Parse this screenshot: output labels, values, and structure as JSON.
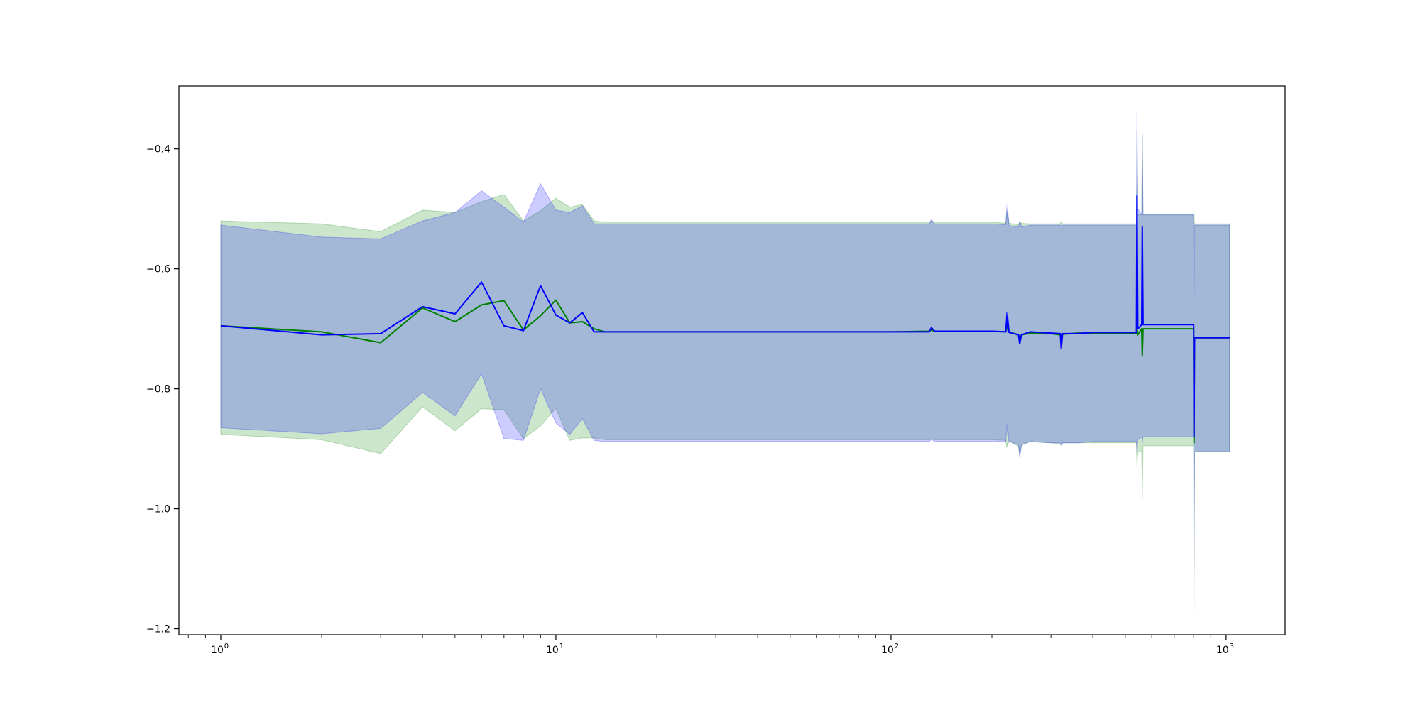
{
  "chart_data": {
    "type": "line",
    "title": "",
    "xlabel": "",
    "ylabel": "",
    "xscale": "log",
    "xlim": [
      0.75,
      1500
    ],
    "ylim": [
      -1.21,
      -0.295
    ],
    "grid": false,
    "legend": "none",
    "x_ticks": [
      {
        "value": 1,
        "base": "10",
        "exp": "0"
      },
      {
        "value": 10,
        "base": "10",
        "exp": "1"
      },
      {
        "value": 100,
        "base": "10",
        "exp": "2"
      },
      {
        "value": 1000,
        "base": "10",
        "exp": "3"
      }
    ],
    "y_ticks": [
      {
        "value": -0.4,
        "label": "−0.4"
      },
      {
        "value": -0.6,
        "label": "−0.6"
      },
      {
        "value": -0.8,
        "label": "−0.8"
      },
      {
        "value": -1.0,
        "label": "−1.0"
      },
      {
        "value": -1.2,
        "label": "−1.2"
      }
    ],
    "series": [
      {
        "color": "#008000",
        "band_color": "#008000",
        "x": [
          1,
          2,
          3,
          4,
          5,
          6,
          7,
          8,
          9,
          10,
          11,
          12,
          13,
          14,
          20,
          50,
          100,
          130,
          132,
          135,
          200,
          220,
          222,
          225,
          240,
          242,
          245,
          260,
          300,
          320,
          322,
          325,
          360,
          400,
          500,
          540,
          542,
          545,
          560,
          562,
          565,
          570,
          600,
          700,
          800,
          802,
          805,
          900,
          1024
        ],
        "y": [
          -0.695,
          -0.705,
          -0.723,
          -0.665,
          -0.688,
          -0.66,
          -0.653,
          -0.702,
          -0.678,
          -0.652,
          -0.69,
          -0.688,
          -0.7,
          -0.705,
          -0.705,
          -0.705,
          -0.705,
          -0.704,
          -0.702,
          -0.704,
          -0.704,
          -0.705,
          -0.69,
          -0.705,
          -0.71,
          -0.715,
          -0.71,
          -0.707,
          -0.708,
          -0.71,
          -0.712,
          -0.709,
          -0.707,
          -0.707,
          -0.707,
          -0.707,
          -0.7,
          -0.71,
          -0.7,
          -0.745,
          -0.7,
          -0.7,
          -0.7,
          -0.7,
          -0.7,
          -0.89,
          -0.715,
          -0.715,
          -0.715
        ],
        "upper": [
          -0.52,
          -0.525,
          -0.538,
          -0.502,
          -0.506,
          -0.488,
          -0.476,
          -0.52,
          -0.503,
          -0.482,
          -0.497,
          -0.493,
          -0.52,
          -0.522,
          -0.522,
          -0.522,
          -0.522,
          -0.522,
          -0.52,
          -0.522,
          -0.522,
          -0.524,
          -0.5,
          -0.524,
          -0.526,
          -0.522,
          -0.524,
          -0.525,
          -0.525,
          -0.525,
          -0.52,
          -0.525,
          -0.525,
          -0.525,
          -0.525,
          -0.525,
          -0.37,
          -0.51,
          -0.51,
          -0.375,
          -0.51,
          -0.51,
          -0.51,
          -0.51,
          -0.51,
          -0.51,
          -0.525,
          -0.525,
          -0.525
        ],
        "lower": [
          -0.876,
          -0.885,
          -0.908,
          -0.83,
          -0.87,
          -0.833,
          -0.835,
          -0.883,
          -0.862,
          -0.832,
          -0.886,
          -0.882,
          -0.882,
          -0.885,
          -0.885,
          -0.885,
          -0.885,
          -0.885,
          -0.884,
          -0.885,
          -0.885,
          -0.886,
          -0.9,
          -0.886,
          -0.896,
          -0.91,
          -0.894,
          -0.888,
          -0.89,
          -0.892,
          -0.895,
          -0.89,
          -0.89,
          -0.89,
          -0.89,
          -0.89,
          -0.93,
          -0.905,
          -0.905,
          -0.985,
          -0.895,
          -0.895,
          -0.895,
          -0.895,
          -0.895,
          -1.17,
          -0.905,
          -0.905,
          -0.905
        ]
      },
      {
        "color": "#0000ff",
        "band_color": "#0000ff",
        "x": [
          1,
          2,
          3,
          4,
          5,
          6,
          7,
          8,
          9,
          10,
          11,
          12,
          13,
          14,
          20,
          50,
          100,
          130,
          132,
          135,
          200,
          220,
          222,
          225,
          240,
          242,
          245,
          260,
          300,
          320,
          322,
          325,
          360,
          400,
          500,
          540,
          542,
          545,
          560,
          562,
          565,
          570,
          600,
          700,
          800,
          802,
          805,
          900,
          1024
        ],
        "y": [
          -0.695,
          -0.71,
          -0.708,
          -0.663,
          -0.675,
          -0.622,
          -0.695,
          -0.703,
          -0.628,
          -0.677,
          -0.69,
          -0.673,
          -0.705,
          -0.705,
          -0.705,
          -0.705,
          -0.705,
          -0.705,
          -0.698,
          -0.704,
          -0.704,
          -0.705,
          -0.673,
          -0.706,
          -0.71,
          -0.725,
          -0.71,
          -0.705,
          -0.707,
          -0.708,
          -0.733,
          -0.708,
          -0.708,
          -0.706,
          -0.706,
          -0.706,
          -0.478,
          -0.7,
          -0.693,
          -0.53,
          -0.693,
          -0.693,
          -0.693,
          -0.693,
          -0.693,
          -0.88,
          -0.715,
          -0.715,
          -0.715
        ],
        "upper": [
          -0.527,
          -0.547,
          -0.55,
          -0.52,
          -0.506,
          -0.47,
          -0.497,
          -0.522,
          -0.458,
          -0.502,
          -0.506,
          -0.495,
          -0.525,
          -0.525,
          -0.525,
          -0.525,
          -0.525,
          -0.525,
          -0.518,
          -0.525,
          -0.525,
          -0.526,
          -0.49,
          -0.528,
          -0.53,
          -0.52,
          -0.53,
          -0.527,
          -0.527,
          -0.527,
          -0.53,
          -0.527,
          -0.527,
          -0.527,
          -0.527,
          -0.527,
          -0.34,
          -0.5,
          -0.51,
          -0.375,
          -0.51,
          -0.51,
          -0.51,
          -0.51,
          -0.51,
          -0.65,
          -0.527,
          -0.527,
          -0.527
        ],
        "lower": [
          -0.865,
          -0.875,
          -0.866,
          -0.806,
          -0.845,
          -0.775,
          -0.883,
          -0.886,
          -0.8,
          -0.857,
          -0.876,
          -0.85,
          -0.886,
          -0.888,
          -0.888,
          -0.888,
          -0.888,
          -0.888,
          -0.884,
          -0.888,
          -0.888,
          -0.888,
          -0.855,
          -0.888,
          -0.893,
          -0.915,
          -0.893,
          -0.888,
          -0.89,
          -0.89,
          -0.895,
          -0.89,
          -0.89,
          -0.888,
          -0.888,
          -0.888,
          -0.91,
          -0.885,
          -0.88,
          -0.89,
          -0.88,
          -0.88,
          -0.88,
          -0.88,
          -0.88,
          -1.1,
          -0.905,
          -0.905,
          -0.905
        ]
      }
    ]
  }
}
